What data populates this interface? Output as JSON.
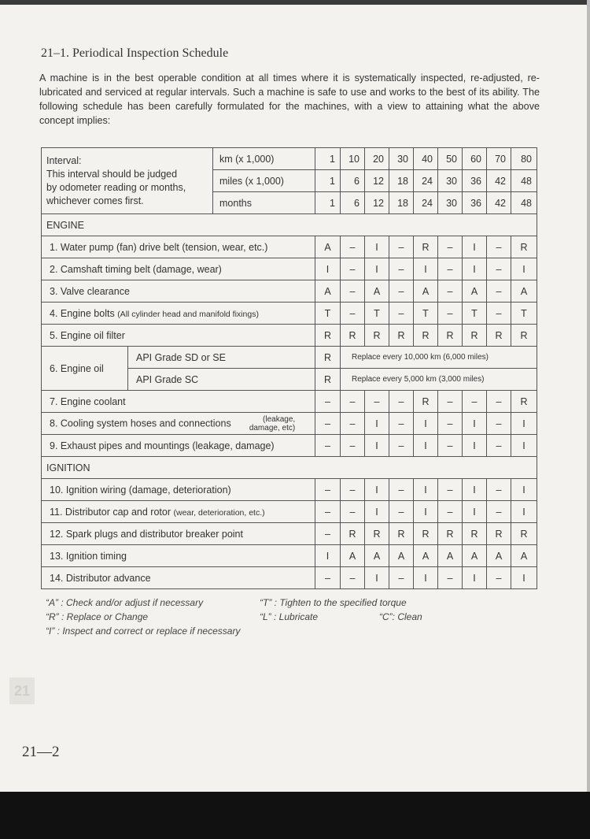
{
  "title": "21–1. Periodical Inspection Schedule",
  "intro": "A machine is in the best operable condition at all times where it is systematically inspected, re-adjusted, re-lubricated and serviced at regular intervals. Such a machine is safe to use and works to the best of its ability. The following schedule has been carefully formulated for the machines, with a view to attaining what the above concept implies:",
  "table": {
    "interval_text": [
      "Interval:",
      "This interval should be judged",
      "by odometer reading or months,",
      "whichever comes first."
    ],
    "interval_rows": [
      {
        "unit": "km    (x 1,000)",
        "values": [
          "1",
          "10",
          "20",
          "30",
          "40",
          "50",
          "60",
          "70",
          "80"
        ]
      },
      {
        "unit": "miles  (x 1,000)",
        "values": [
          "1",
          "6",
          "12",
          "18",
          "24",
          "30",
          "36",
          "42",
          "48"
        ]
      },
      {
        "unit": "months",
        "values": [
          "1",
          "6",
          "12",
          "18",
          "24",
          "30",
          "36",
          "42",
          "48"
        ]
      }
    ],
    "sections": [
      {
        "name": "ENGINE",
        "items": [
          {
            "label": "1.  Water pump (fan) drive belt (tension, wear, etc.)",
            "values": [
              "A",
              "–",
              "I",
              "–",
              "R",
              "–",
              "I",
              "–",
              "R"
            ]
          },
          {
            "label": "2.  Camshaft timing belt (damage, wear)",
            "values": [
              "I",
              "–",
              "I",
              "–",
              "I",
              "–",
              "I",
              "–",
              "I"
            ]
          },
          {
            "label": "3.  Valve clearance",
            "values": [
              "A",
              "–",
              "A",
              "–",
              "A",
              "–",
              "A",
              "–",
              "A"
            ]
          },
          {
            "label": "4.  Engine bolts",
            "note": "(All cylinder head and manifold fixings)",
            "values": [
              "T",
              "–",
              "T",
              "–",
              "T",
              "–",
              "T",
              "–",
              "T"
            ]
          },
          {
            "label": "5.  Engine oil filter",
            "values": [
              "R",
              "R",
              "R",
              "R",
              "R",
              "R",
              "R",
              "R",
              "R"
            ]
          },
          {
            "label": "6.  Engine oil",
            "sub": [
              {
                "grade": "API Grade SD or SE",
                "first": "R",
                "text": "Replace every 10,000 km (6,000 miles)"
              },
              {
                "grade": "API Grade SC",
                "first": "R",
                "text": "Replace every 5,000 km (3,000 miles)"
              }
            ]
          },
          {
            "label": "7.  Engine coolant",
            "values": [
              "–",
              "–",
              "–",
              "–",
              "R",
              "–",
              "–",
              "–",
              "R"
            ]
          },
          {
            "label": "8.  Cooling system hoses and connections",
            "note": "(leakage, damage, etc)",
            "values": [
              "–",
              "–",
              "I",
              "–",
              "I",
              "–",
              "I",
              "–",
              "I"
            ]
          },
          {
            "label": "9.  Exhaust pipes and mountings (leakage, damage)",
            "values": [
              "–",
              "–",
              "I",
              "–",
              "I",
              "–",
              "I",
              "–",
              "I"
            ]
          }
        ]
      },
      {
        "name": "IGNITION",
        "items": [
          {
            "label": "10.  Ignition wiring (damage, deterioration)",
            "values": [
              "–",
              "–",
              "I",
              "–",
              "I",
              "–",
              "I",
              "–",
              "I"
            ]
          },
          {
            "label": "11.  Distributor cap and rotor",
            "note": "(wear, deterioration, etc.)",
            "values": [
              "–",
              "–",
              "I",
              "–",
              "I",
              "–",
              "I",
              "–",
              "I"
            ]
          },
          {
            "label": "12.  Spark plugs and distributor breaker point",
            "values": [
              "–",
              "R",
              "R",
              "R",
              "R",
              "R",
              "R",
              "R",
              "R"
            ]
          },
          {
            "label": "13.  Ignition timing",
            "values": [
              "I",
              "A",
              "A",
              "A",
              "A",
              "A",
              "A",
              "A",
              "A"
            ]
          },
          {
            "label": "14.  Distributor advance",
            "values": [
              "–",
              "–",
              "I",
              "–",
              "I",
              "–",
              "I",
              "–",
              "I"
            ]
          }
        ]
      }
    ]
  },
  "legend": {
    "a": "“A” :   Check and/or adjust if necessary",
    "t": "“T” :   Tighten to the specified torque",
    "r": "“R” :   Replace or Change",
    "l": "“L” :   Lubricate",
    "c": "“C”:   Clean",
    "i": "“I”  :   Inspect and correct or replace if necessary"
  },
  "page_tab": "21",
  "page_number": "21—2"
}
